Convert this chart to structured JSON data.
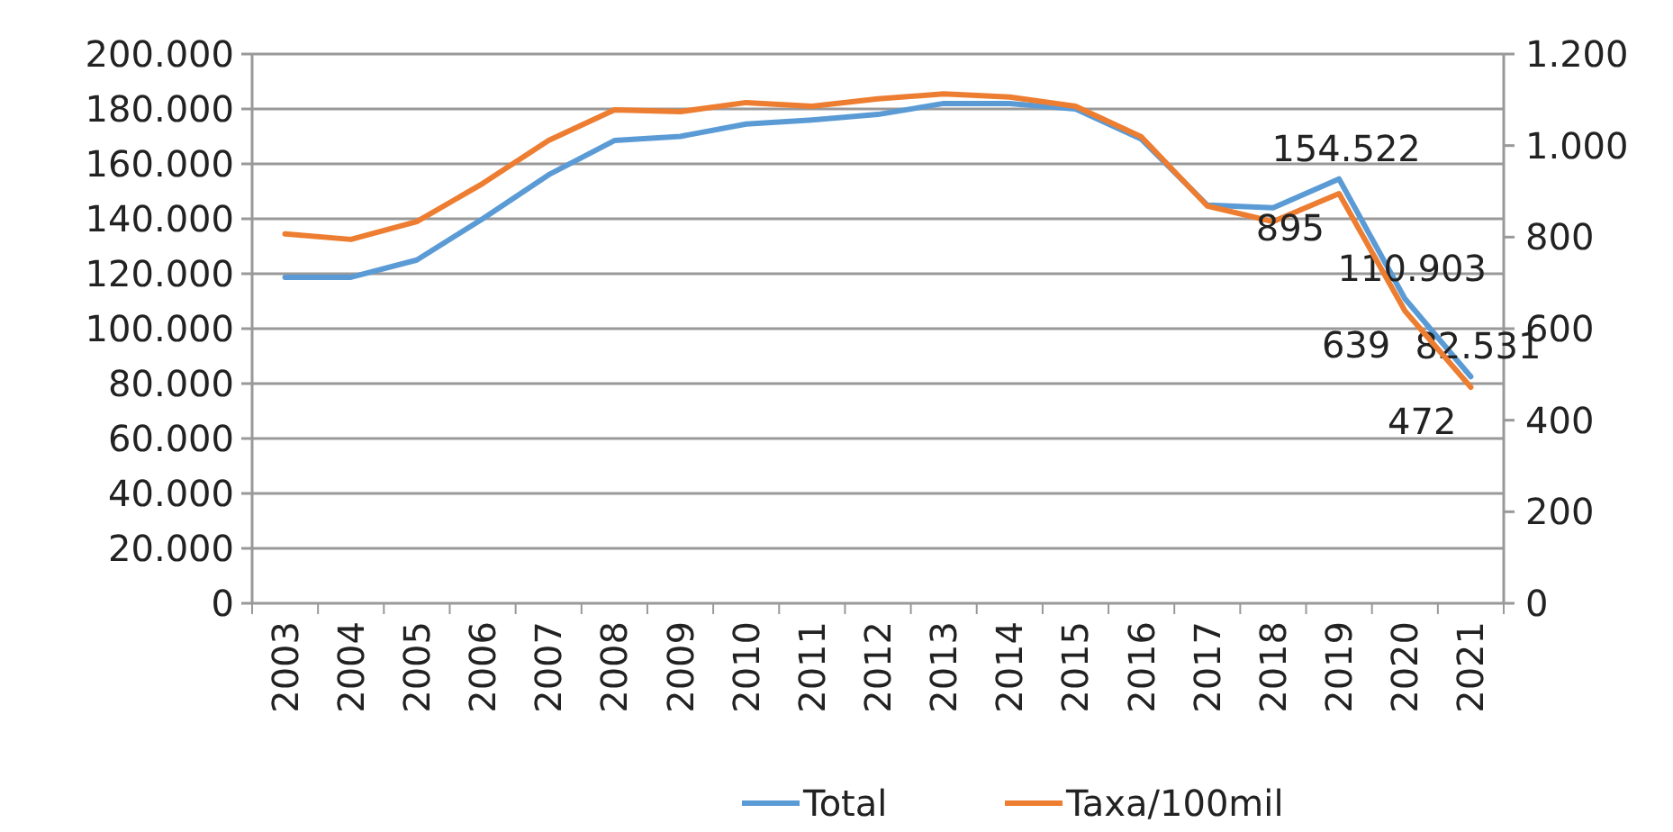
{
  "chart_data": {
    "type": "line",
    "categories": [
      "2003",
      "2004",
      "2005",
      "2006",
      "2007",
      "2008",
      "2009",
      "2010",
      "2011",
      "2012",
      "2013",
      "2014",
      "2015",
      "2016",
      "2017",
      "2018",
      "2019",
      "2020",
      "2021"
    ],
    "series": [
      {
        "name": "Total",
        "color": "#5b9bd5",
        "values": [
          118700,
          118700,
          125000,
          140000,
          156000,
          168500,
          170000,
          174500,
          176000,
          178000,
          182000,
          182000,
          180000,
          169000,
          145000,
          144000,
          154522,
          110903,
          82531
        ],
        "value_labels": [
          null,
          null,
          null,
          null,
          null,
          null,
          null,
          null,
          null,
          null,
          null,
          null,
          null,
          null,
          null,
          null,
          "154.522",
          "110.903",
          "82.531"
        ]
      },
      {
        "name": "Taxa/100mil",
        "color": "#ed7d31",
        "axis": "y2",
        "values": [
          807,
          795,
          834,
          917,
          1011,
          1078,
          1074,
          1094,
          1086,
          1102,
          1113,
          1106,
          1086,
          1019,
          868,
          834,
          895,
          639,
          472
        ],
        "value_labels": [
          null,
          null,
          null,
          null,
          null,
          null,
          null,
          null,
          null,
          null,
          null,
          null,
          null,
          null,
          null,
          null,
          "895",
          "639",
          "472"
        ]
      }
    ],
    "ylim": [
      0,
      200000
    ],
    "yticks": [
      {
        "value": 0,
        "label": "0"
      },
      {
        "value": 20000,
        "label": "20.000"
      },
      {
        "value": 40000,
        "label": "40.000"
      },
      {
        "value": 60000,
        "label": "60.000"
      },
      {
        "value": 80000,
        "label": "80.000"
      },
      {
        "value": 100000,
        "label": "100.000"
      },
      {
        "value": 120000,
        "label": "120.000"
      },
      {
        "value": 140000,
        "label": "140.000"
      },
      {
        "value": 160000,
        "label": "160.000"
      },
      {
        "value": 180000,
        "label": "180.000"
      },
      {
        "value": 200000,
        "label": "200.000"
      }
    ],
    "y2lim": [
      0,
      1200
    ],
    "y2ticks": [
      0,
      200,
      400,
      600,
      800,
      {
        "value": 1000,
        "label": "1.000"
      },
      {
        "value": 1200,
        "label": "1.200"
      }
    ],
    "grid": "y",
    "legend": "bottom",
    "marker": "none",
    "line_style": "solid"
  }
}
